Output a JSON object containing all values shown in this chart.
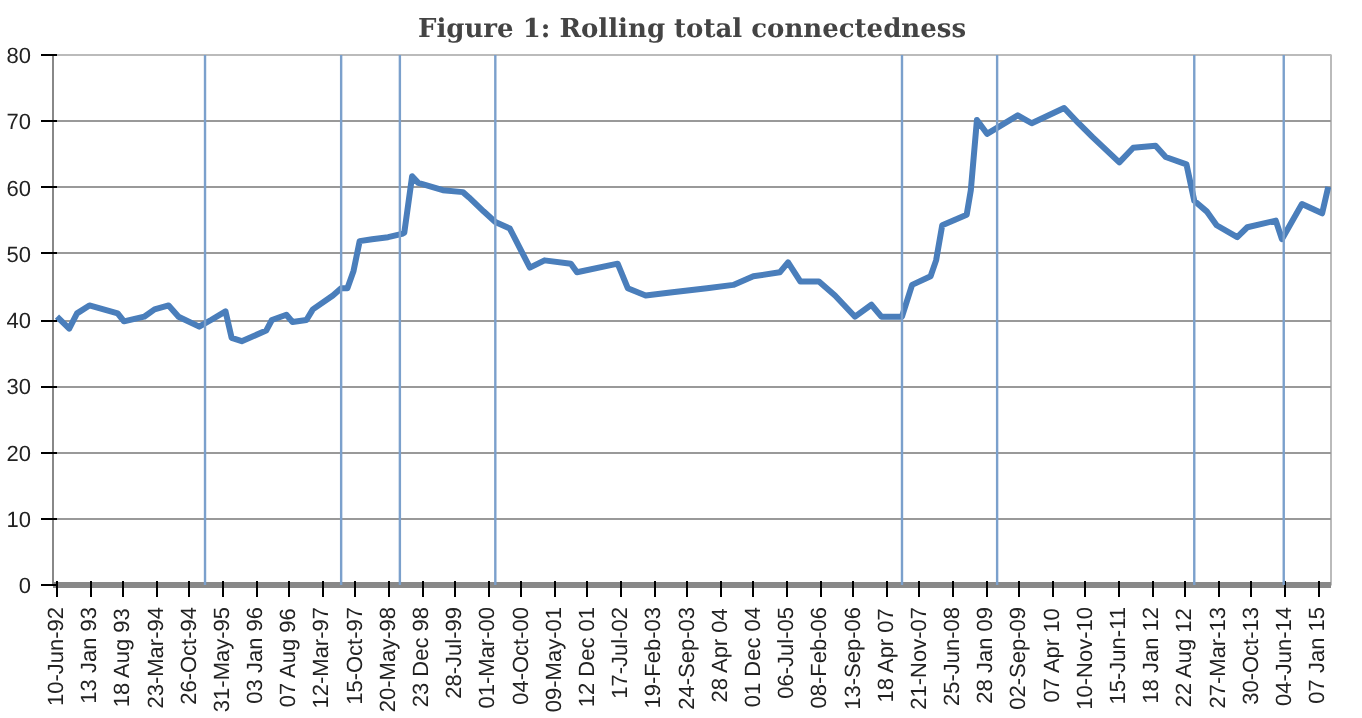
{
  "chart_data": {
    "type": "line",
    "title": "Figure 1: Rolling total connectedness",
    "x": [
      "1992-06-10",
      "1992-08-29",
      "1992-10-19",
      "1993-01-08",
      "1993-07-12",
      "1993-08-22",
      "1994-01-01",
      "1994-03-10",
      "1994-06-10",
      "1994-08-14",
      "1994-12-27",
      "1995-03-14",
      "1995-06-17",
      "1995-07-27",
      "1995-10-01",
      "1996-03-09",
      "1996-04-15",
      "1996-07-19",
      "1996-08-28",
      "1996-11-27",
      "1997-01-08",
      "1997-05-19",
      "1997-07-12",
      "1997-08-22",
      "1997-10-01",
      "1997-11-10",
      "1998-01-30",
      "1998-05-15",
      "1998-08-14",
      "1998-08-29",
      "1998-10-19",
      "1998-11-28",
      "1999-05-08",
      "1999-09-16",
      "1999-10-26",
      "2000-01-29",
      "2000-04-15",
      "2000-07-19",
      "2000-11-27",
      "2001-03-03",
      "2001-08-22",
      "2001-10-01",
      "2002-06-24",
      "2002-08-29",
      "2002-12-24",
      "2003-06-17",
      "2004-01-29",
      "2004-07-19",
      "2004-11-27",
      "2005-05-19",
      "2005-07-12",
      "2005-10-01",
      "2006-01-30",
      "2006-05-15",
      "2006-09-23",
      "2007-01-08",
      "2007-03-14",
      "2007-07-27",
      "2007-10-01",
      "2008-01-30",
      "2008-03-06",
      "2008-04-15",
      "2008-09-22",
      "2008-10-19",
      "2008-11-28",
      "2009-02-02",
      "2009-08-22",
      "2009-11-21",
      "2010-06-21",
      "2010-09-23",
      "2010-12-24",
      "2011-06-17",
      "2011-09-16",
      "2012-02-09",
      "2012-04-15",
      "2012-08-29",
      "2012-10-19",
      "2013-01-08",
      "2013-03-14",
      "2013-07-27",
      "2013-10-01",
      "2014-04-05",
      "2014-05-15",
      "2014-09-23",
      "2015-02-02",
      "2015-03-14"
    ],
    "series": [
      {
        "color": "#4a7ebb",
        "values": [
          40.5,
          38.7,
          41,
          42.2,
          41,
          39.8,
          40.5,
          41.6,
          42.2,
          40.5,
          39,
          40,
          41.3,
          37.3,
          36.8,
          38.4,
          40,
          40.8,
          39.7,
          40,
          41.6,
          43.7,
          44.8,
          44.8,
          47.4,
          51.9,
          52.2,
          52.5,
          53,
          53.2,
          61.7,
          60.7,
          59.6,
          59.3,
          58.5,
          56.4,
          54.8,
          53.8,
          47.9,
          49,
          48.5,
          47.2,
          48.5,
          44.8,
          43.7,
          44.2,
          44.8,
          45.3,
          46.6,
          47.2,
          48.7,
          45.8,
          45.8,
          43.7,
          40.5,
          42.3,
          40.5,
          40.5,
          45.3,
          46.6,
          49,
          54.3,
          55.9,
          59.6,
          70.2,
          68.1,
          70.9,
          69.7,
          72,
          69.7,
          67.6,
          63.8,
          66,
          66.3,
          64.6,
          63.5,
          58,
          56.4,
          54.3,
          52.5,
          54,
          55,
          52.2,
          57.5,
          56.1,
          60.1
        ]
      }
    ],
    "xlim": [
      "1992-05-15",
      "2015-04-01"
    ],
    "xticks": [
      {
        "value": "1992-06-10",
        "label": "10-Jun-92"
      },
      {
        "value": "1993-01-13",
        "label": "13 Jan 93"
      },
      {
        "value": "1993-08-18",
        "label": "18 Aug 93"
      },
      {
        "value": "1994-03-23",
        "label": "23-Mar-94"
      },
      {
        "value": "1994-10-26",
        "label": "26-Oct-94"
      },
      {
        "value": "1995-05-31",
        "label": "31-May-95"
      },
      {
        "value": "1996-01-03",
        "label": "03 Jan 96"
      },
      {
        "value": "1996-08-07",
        "label": "07 Aug 96"
      },
      {
        "value": "1997-03-12",
        "label": "12-Mar-97"
      },
      {
        "value": "1997-10-15",
        "label": "15-Oct-97"
      },
      {
        "value": "1998-05-20",
        "label": "20-May-98"
      },
      {
        "value": "1998-12-23",
        "label": "23 Dec 98"
      },
      {
        "value": "1999-07-28",
        "label": "28-Jul-99"
      },
      {
        "value": "2000-03-01",
        "label": "01-Mar-00"
      },
      {
        "value": "2000-10-04",
        "label": "04-Oct-00"
      },
      {
        "value": "2001-05-09",
        "label": "09-May-01"
      },
      {
        "value": "2001-12-12",
        "label": "12 Dec 01"
      },
      {
        "value": "2002-07-17",
        "label": "17-Jul-02"
      },
      {
        "value": "2003-02-19",
        "label": "19-Feb-03"
      },
      {
        "value": "2003-09-24",
        "label": "24-Sep-03"
      },
      {
        "value": "2004-04-28",
        "label": "28 Apr 04"
      },
      {
        "value": "2004-12-01",
        "label": "01 Dec 04"
      },
      {
        "value": "2005-07-06",
        "label": "06-Jul-05"
      },
      {
        "value": "2006-02-08",
        "label": "08-Feb-06"
      },
      {
        "value": "2006-09-13",
        "label": "13-Sep-06"
      },
      {
        "value": "2007-04-18",
        "label": "18 Apr 07"
      },
      {
        "value": "2007-11-21",
        "label": "21-Nov-07"
      },
      {
        "value": "2008-06-25",
        "label": "25-Jun-08"
      },
      {
        "value": "2009-01-28",
        "label": "28 Jan 09"
      },
      {
        "value": "2009-09-02",
        "label": "02-Sep-09"
      },
      {
        "value": "2010-04-07",
        "label": "07 Apr 10"
      },
      {
        "value": "2010-11-10",
        "label": "10-Nov-10"
      },
      {
        "value": "2011-06-15",
        "label": "15-Jun-11"
      },
      {
        "value": "2012-01-18",
        "label": "18 Jan 12"
      },
      {
        "value": "2012-08-22",
        "label": "22 Aug 12"
      },
      {
        "value": "2013-03-27",
        "label": "27-Mar-13"
      },
      {
        "value": "2013-10-30",
        "label": "30-Oct-13"
      },
      {
        "value": "2014-06-04",
        "label": "04-Jun-14"
      },
      {
        "value": "2015-01-07",
        "label": "07 Jan 15"
      }
    ],
    "ylim": [
      0,
      80
    ],
    "yticks": [
      0,
      10,
      20,
      30,
      40,
      50,
      60,
      70,
      80
    ],
    "grid": "y",
    "ref_lines": [
      {
        "axis": "x",
        "value": "1995-02-03",
        "color": "#7ba0cc"
      },
      {
        "axis": "x",
        "value": "1997-07-12",
        "color": "#7ba0cc"
      },
      {
        "axis": "x",
        "value": "1998-07-31",
        "color": "#7ba0cc"
      },
      {
        "axis": "x",
        "value": "2000-04-15",
        "color": "#7ba0cc"
      },
      {
        "axis": "x",
        "value": "2007-07-27",
        "color": "#7ba0cc"
      },
      {
        "axis": "x",
        "value": "2009-04-09",
        "color": "#7ba0cc"
      },
      {
        "axis": "x",
        "value": "2012-10-19",
        "color": "#7ba0cc"
      },
      {
        "axis": "x",
        "value": "2014-05-27",
        "color": "#7ba0cc"
      }
    ]
  }
}
